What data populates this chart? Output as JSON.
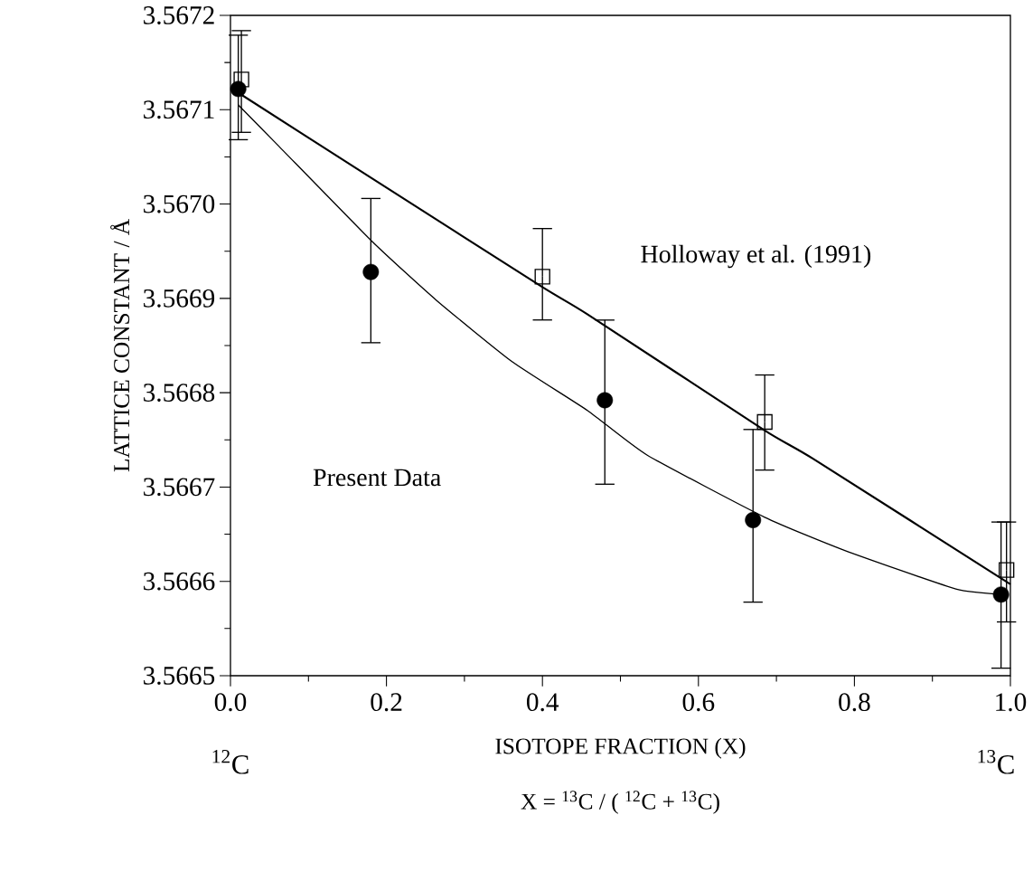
{
  "chart_data": {
    "type": "scatter",
    "xlabel": "ISOTOPE   FRACTION  (X)",
    "ylabel": "LATTICE    CONSTANT    / Å",
    "xlim": [
      0,
      1
    ],
    "ylim": [
      3.5665,
      3.5672
    ],
    "xticks": [
      {
        "value": 0,
        "label": "0.0"
      },
      {
        "value": 0.2,
        "label": "0.2"
      },
      {
        "value": 0.4,
        "label": "0.4"
      },
      {
        "value": 0.6,
        "label": "0.6"
      },
      {
        "value": 0.8,
        "label": "0.8"
      },
      {
        "value": 1,
        "label": "1.0"
      }
    ],
    "yticks": [
      3.5665,
      3.5666,
      3.5667,
      3.5668,
      3.5669,
      {
        "value": 3.567,
        "label": "3.5670"
      },
      3.5671,
      3.5672
    ],
    "series": [
      {
        "marker": "circle",
        "color": "#000000",
        "x": [
          0.01,
          0.18,
          0.48,
          0.67,
          0.988
        ],
        "values": [
          3.567122,
          3.566928,
          3.566792,
          3.566665,
          3.566586
        ],
        "errors": [
          [
            3.567068,
            3.567179
          ],
          [
            3.566853,
            3.567006
          ],
          [
            3.566703,
            3.566877
          ],
          [
            3.566578,
            3.566761
          ],
          [
            3.566508,
            3.566663
          ]
        ]
      },
      {
        "marker": "square",
        "color": "#000000",
        "x": [
          0.014,
          0.4,
          0.685,
          0.995
        ],
        "values": [
          3.567132,
          3.566923,
          3.566769,
          3.566612
        ],
        "errors": [
          [
            3.567076,
            3.567184
          ],
          [
            3.566877,
            3.566974
          ],
          [
            3.566718,
            3.566819
          ],
          [
            3.566557,
            3.566663
          ]
        ]
      },
      {
        "type": "line",
        "marker": "none",
        "color": "#000000",
        "x": [
          0.01,
          0.06,
          0.182,
          0.264,
          0.361,
          0.458,
          0.534,
          0.685,
          0.787,
          0.93,
          0.995
        ],
        "values": [
          3.567105,
          3.567063,
          3.56696,
          3.566898,
          3.566833,
          3.566781,
          3.566734,
          3.566668,
          3.566633,
          3.566592,
          3.566586
        ]
      },
      {
        "type": "line",
        "marker": "none",
        "color": "#000000",
        "x": [
          0.01,
          0.18,
          0.4,
          0.458,
          0.685,
          0.747,
          1.0
        ],
        "values": [
          3.567118,
          3.567028,
          3.566912,
          3.566883,
          3.56676,
          3.56673,
          3.566597
        ]
      }
    ],
    "annotations": [
      "Holloway  et al. (1991)",
      "Present  Data",
      "$^{12}$C",
      "$^{13}$C",
      "X = $^{13}$C / ( $^{12}$C + $^{13}$C)"
    ]
  }
}
